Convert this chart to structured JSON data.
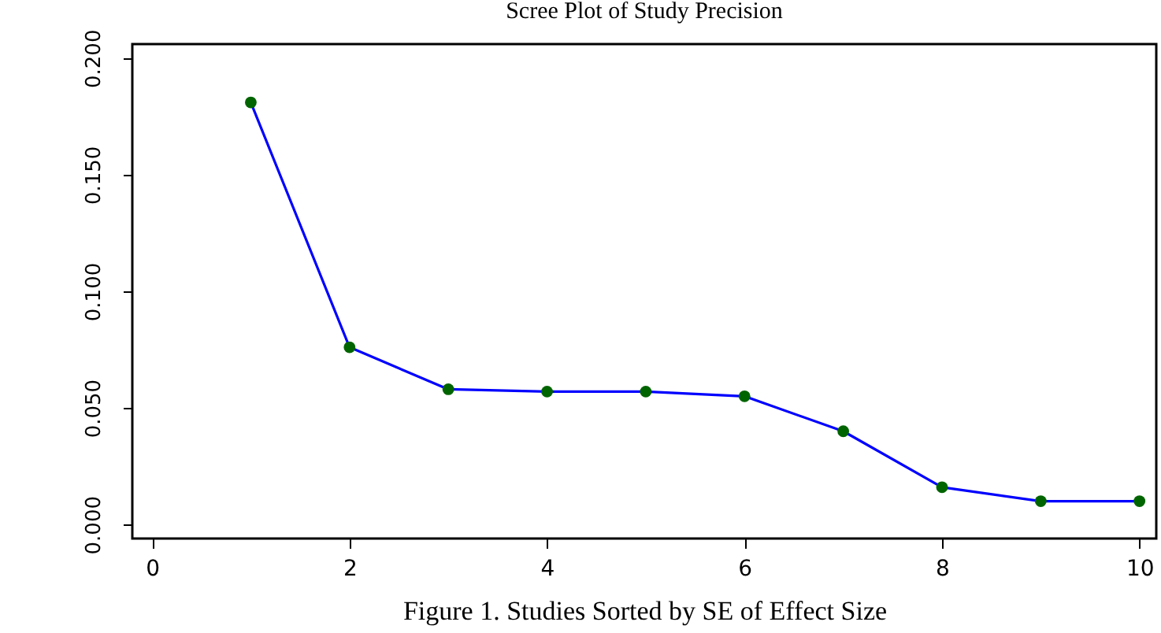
{
  "chart_data": {
    "type": "line",
    "title": "Scree Plot of Study Precision",
    "xlabel": "Figure 1. Studies Sorted by SE of Effect Size",
    "x": [
      1,
      2,
      3,
      4,
      5,
      6,
      7,
      8,
      9,
      10
    ],
    "series": [
      {
        "color": "#0000ff",
        "colors": [
          "#006400",
          "#006400",
          "#006400",
          "#006400",
          "#006400",
          "#006400",
          "#006400",
          "#006400",
          "#006400",
          "#006400"
        ],
        "values": [
          0.181,
          0.076,
          0.058,
          0.057,
          0.057,
          0.055,
          0.04,
          0.016,
          0.01,
          0.01
        ]
      }
    ],
    "xlim": [
      -0.2,
      10.17
    ],
    "ylim": [
      -0.006,
      0.206
    ],
    "xticks": [
      0,
      2,
      4,
      6,
      8,
      10
    ],
    "yticks": [
      {
        "value": 0,
        "label": "0.000"
      },
      {
        "value": 0.05,
        "label": "0.050"
      },
      {
        "value": 0.1,
        "label": "0.100"
      },
      {
        "value": 0.15,
        "label": "0.150"
      },
      {
        "value": 0.2,
        "label": "0.200"
      }
    ],
    "grid": false,
    "marker": "circle",
    "line_style": "solid"
  }
}
